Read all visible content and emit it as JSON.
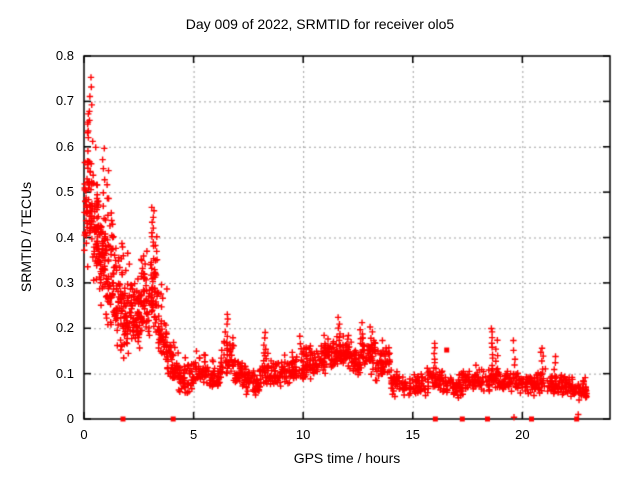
{
  "title": "Day 009 of 2022, SRMTID for receiver olo5",
  "chart_data": {
    "type": "scatter",
    "title": "Day 009 of 2022, SRMTID for receiver olo5",
    "xlabel": "GPS time / hours",
    "ylabel": "SRMTID / TECUs",
    "xlim": [
      0,
      24
    ],
    "ylim": [
      0,
      0.8
    ],
    "xticks": [
      0,
      5,
      10,
      15,
      20
    ],
    "xtick_labels": [
      "0",
      "5",
      "10",
      "15",
      "20"
    ],
    "yticks": [
      0,
      0.1,
      0.2,
      0.3,
      0.4,
      0.5,
      0.6,
      0.7,
      0.8
    ],
    "ytick_labels": [
      "0",
      "0.1",
      "0.2",
      "0.3",
      "0.4",
      "0.5",
      "0.6",
      "0.7",
      "0.8"
    ],
    "grid": true,
    "legend": "none",
    "marker": "plus",
    "point_color": "#ff0000",
    "axis_color": "#000000",
    "grid_color": "#a0a0a0",
    "seed": 20220109,
    "scatter_segments": [
      [
        0.0,
        0.15,
        25,
        0.33,
        0.45,
        0.62
      ],
      [
        0.15,
        0.4,
        45,
        0.3,
        0.47,
        0.75
      ],
      [
        0.4,
        0.7,
        55,
        0.27,
        0.42,
        0.62
      ],
      [
        0.7,
        1.0,
        55,
        0.22,
        0.37,
        0.6
      ],
      [
        1.0,
        1.4,
        60,
        0.15,
        0.3,
        0.55
      ],
      [
        1.4,
        1.8,
        55,
        0.12,
        0.27,
        0.45
      ],
      [
        1.8,
        2.2,
        55,
        0.1,
        0.23,
        0.4
      ],
      [
        2.2,
        2.6,
        55,
        0.1,
        0.22,
        0.38
      ],
      [
        2.6,
        3.0,
        55,
        0.12,
        0.26,
        0.42
      ],
      [
        3.0,
        3.4,
        55,
        0.13,
        0.28,
        0.47
      ],
      [
        3.4,
        3.8,
        45,
        0.09,
        0.18,
        0.33
      ],
      [
        3.8,
        4.3,
        45,
        0.06,
        0.115,
        0.2
      ],
      [
        4.3,
        5.0,
        55,
        0.04,
        0.085,
        0.15
      ],
      [
        5.0,
        5.6,
        45,
        0.06,
        0.1,
        0.17
      ],
      [
        5.6,
        6.2,
        45,
        0.05,
        0.085,
        0.14
      ],
      [
        6.2,
        6.9,
        50,
        0.07,
        0.13,
        0.22
      ],
      [
        6.9,
        7.4,
        40,
        0.06,
        0.1,
        0.16
      ],
      [
        7.4,
        8.0,
        45,
        0.04,
        0.075,
        0.12
      ],
      [
        8.0,
        8.6,
        45,
        0.05,
        0.1,
        0.17
      ],
      [
        8.6,
        9.4,
        55,
        0.06,
        0.095,
        0.15
      ],
      [
        9.4,
        10.1,
        50,
        0.07,
        0.11,
        0.17
      ],
      [
        10.1,
        10.8,
        55,
        0.08,
        0.12,
        0.18
      ],
      [
        10.8,
        11.5,
        55,
        0.09,
        0.135,
        0.2
      ],
      [
        11.5,
        12.1,
        50,
        0.1,
        0.15,
        0.21
      ],
      [
        12.1,
        12.6,
        40,
        0.08,
        0.125,
        0.18
      ],
      [
        12.6,
        13.3,
        55,
        0.09,
        0.14,
        0.2
      ],
      [
        13.3,
        14.0,
        55,
        0.07,
        0.12,
        0.19
      ],
      [
        14.0,
        14.6,
        40,
        0.04,
        0.08,
        0.12
      ],
      [
        14.6,
        15.6,
        60,
        0.04,
        0.07,
        0.11
      ],
      [
        15.6,
        16.4,
        50,
        0.05,
        0.085,
        0.13
      ],
      [
        16.4,
        17.3,
        55,
        0.04,
        0.075,
        0.12
      ],
      [
        17.3,
        18.3,
        60,
        0.05,
        0.085,
        0.13
      ],
      [
        18.3,
        19.1,
        50,
        0.05,
        0.085,
        0.13
      ],
      [
        19.1,
        19.9,
        50,
        0.05,
        0.08,
        0.12
      ],
      [
        19.9,
        20.7,
        50,
        0.04,
        0.075,
        0.11
      ],
      [
        20.7,
        21.5,
        50,
        0.05,
        0.08,
        0.12
      ],
      [
        21.5,
        22.3,
        50,
        0.04,
        0.072,
        0.11
      ],
      [
        22.3,
        22.95,
        45,
        0.03,
        0.062,
        0.1
      ]
    ],
    "spike_clusters": [
      [
        0.15,
        0.62,
        0.67,
        4
      ],
      [
        0.3,
        0.66,
        0.75,
        6
      ],
      [
        0.9,
        0.5,
        0.6,
        5
      ],
      [
        1.1,
        0.45,
        0.55,
        4
      ],
      [
        3.15,
        0.38,
        0.47,
        8
      ],
      [
        6.5,
        0.15,
        0.23,
        8
      ],
      [
        8.25,
        0.13,
        0.19,
        6
      ],
      [
        9.9,
        0.13,
        0.18,
        5
      ],
      [
        11.65,
        0.15,
        0.22,
        8
      ],
      [
        12.65,
        0.15,
        0.21,
        6
      ],
      [
        13.1,
        0.14,
        0.2,
        6
      ],
      [
        16.0,
        0.11,
        0.17,
        6
      ],
      [
        18.6,
        0.12,
        0.2,
        8
      ],
      [
        18.85,
        0.11,
        0.17,
        5
      ],
      [
        19.65,
        0.1,
        0.17,
        5
      ],
      [
        20.9,
        0.1,
        0.16,
        6
      ],
      [
        21.5,
        0.09,
        0.14,
        4
      ]
    ],
    "baseline_squares_x": [
      1.78,
      4.07,
      16.03,
      17.26,
      18.41,
      20.42,
      22.48
    ],
    "square_points": [
      {
        "x": 16.55,
        "y": 0.152
      }
    ],
    "axis_plus_points": [
      {
        "x": 19.62,
        "y": 0.004
      },
      {
        "x": 22.55,
        "y": 0.01
      }
    ]
  }
}
